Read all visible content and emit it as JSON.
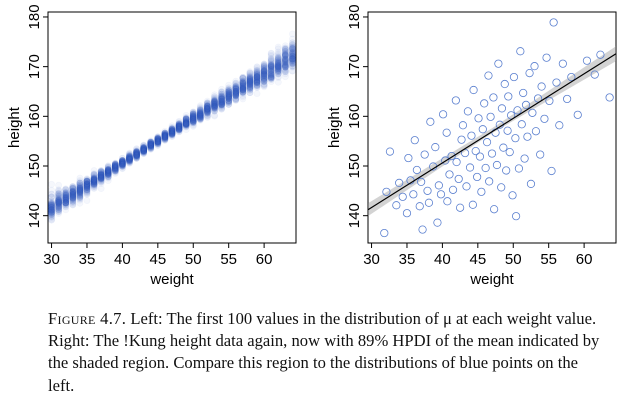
{
  "chart_data": [
    {
      "type": "scatter",
      "panel": "left",
      "xlabel": "weight",
      "ylabel": "height",
      "xlim": [
        29.5,
        64.5
      ],
      "ylim": [
        134.5,
        181
      ],
      "x_ticks": [
        30,
        35,
        40,
        45,
        50,
        55,
        60
      ],
      "y_ticks": [
        140,
        150,
        160,
        170,
        180
      ],
      "grid": false,
      "legend": "none",
      "series": [
        {
          "description": "Distribution of mu at each weight, first 100 posterior samples",
          "weights": [
            30,
            31,
            32,
            33,
            34,
            35,
            36,
            37,
            38,
            39,
            40,
            41,
            42,
            43,
            44,
            45,
            46,
            47,
            48,
            49,
            50,
            51,
            52,
            53,
            54,
            55,
            56,
            57,
            58,
            59,
            60,
            61,
            62,
            63,
            64
          ],
          "mu_mean": [
            141.6,
            142.5,
            143.4,
            144.3,
            145.2,
            146.1,
            147.0,
            147.9,
            148.8,
            149.7,
            150.6,
            151.5,
            152.4,
            153.3,
            154.2,
            155.1,
            156.0,
            156.9,
            157.8,
            158.7,
            159.6,
            160.5,
            161.4,
            162.3,
            163.2,
            164.1,
            165.0,
            165.9,
            166.8,
            167.7,
            168.6,
            169.5,
            170.4,
            171.3,
            172.2
          ],
          "mu_spread": [
            2.2,
            2.0,
            1.8,
            1.6,
            1.4,
            1.3,
            1.2,
            1.1,
            1.0,
            0.9,
            0.8,
            0.75,
            0.7,
            0.65,
            0.65,
            0.65,
            0.7,
            0.75,
            0.8,
            0.9,
            1.0,
            1.1,
            1.2,
            1.3,
            1.4,
            1.5,
            1.6,
            1.7,
            1.8,
            1.9,
            2.0,
            2.1,
            2.2,
            2.3,
            2.4
          ],
          "samples_per_weight": 100
        }
      ]
    },
    {
      "type": "scatter",
      "panel": "right",
      "xlabel": "weight",
      "ylabel": "height",
      "xlim": [
        29.5,
        64.5
      ],
      "ylim": [
        134.5,
        181
      ],
      "x_ticks": [
        30,
        35,
        40,
        45,
        50,
        55,
        60
      ],
      "y_ticks": [
        140,
        150,
        160,
        170,
        180
      ],
      "grid": false,
      "legend": "none",
      "mean_line": {
        "x": [
          29.5,
          64.5
        ],
        "y": [
          141.2,
          172.6
        ]
      },
      "hpdi_band": {
        "prob": 0.89,
        "x": [
          29.5,
          47,
          64.5
        ],
        "lower": [
          139.9,
          156.6,
          171.1
        ],
        "upper": [
          142.5,
          157.6,
          174.1
        ]
      },
      "points": [
        [
          31.8,
          136.5
        ],
        [
          32.1,
          144.8
        ],
        [
          32.6,
          152.9
        ],
        [
          33.5,
          142.1
        ],
        [
          33.9,
          146.6
        ],
        [
          34.4,
          143.8
        ],
        [
          35.0,
          140.5
        ],
        [
          35.2,
          151.6
        ],
        [
          35.5,
          147.1
        ],
        [
          35.9,
          144.3
        ],
        [
          36.1,
          155.2
        ],
        [
          36.4,
          149.2
        ],
        [
          36.8,
          141.9
        ],
        [
          37.2,
          137.2
        ],
        [
          37.0,
          146.8
        ],
        [
          37.5,
          152.3
        ],
        [
          37.9,
          145.0
        ],
        [
          38.3,
          158.9
        ],
        [
          38.1,
          142.6
        ],
        [
          38.7,
          149.9
        ],
        [
          39.0,
          153.8
        ],
        [
          39.3,
          138.6
        ],
        [
          39.5,
          146.1
        ],
        [
          39.8,
          144.3
        ],
        [
          40.1,
          160.4
        ],
        [
          40.4,
          151.1
        ],
        [
          40.7,
          142.9
        ],
        [
          40.6,
          156.7
        ],
        [
          41.0,
          148.3
        ],
        [
          41.3,
          152.0
        ],
        [
          41.5,
          145.2
        ],
        [
          41.9,
          163.2
        ],
        [
          42.0,
          150.8
        ],
        [
          42.3,
          147.4
        ],
        [
          42.5,
          141.6
        ],
        [
          42.7,
          155.3
        ],
        [
          42.9,
          158.2
        ],
        [
          43.2,
          152.6
        ],
        [
          43.4,
          145.9
        ],
        [
          43.6,
          161.0
        ],
        [
          43.9,
          149.7
        ],
        [
          44.1,
          156.1
        ],
        [
          44.3,
          142.2
        ],
        [
          44.4,
          165.3
        ],
        [
          44.7,
          153.0
        ],
        [
          44.9,
          147.8
        ],
        [
          45.1,
          159.6
        ],
        [
          45.3,
          151.9
        ],
        [
          45.5,
          144.8
        ],
        [
          45.7,
          157.4
        ],
        [
          45.9,
          162.6
        ],
        [
          46.1,
          149.6
        ],
        [
          46.3,
          154.8
        ],
        [
          46.5,
          168.2
        ],
        [
          46.6,
          146.9
        ],
        [
          46.8,
          159.9
        ],
        [
          47.0,
          152.5
        ],
        [
          47.2,
          163.8
        ],
        [
          47.3,
          141.3
        ],
        [
          47.5,
          156.7
        ],
        [
          47.7,
          150.2
        ],
        [
          47.9,
          170.6
        ],
        [
          48.1,
          158.3
        ],
        [
          48.3,
          145.7
        ],
        [
          48.4,
          161.6
        ],
        [
          48.6,
          153.7
        ],
        [
          48.8,
          166.5
        ],
        [
          49.0,
          149.1
        ],
        [
          49.2,
          157.1
        ],
        [
          49.3,
          164.0
        ],
        [
          49.5,
          152.8
        ],
        [
          49.7,
          160.2
        ],
        [
          49.9,
          144.1
        ],
        [
          50.1,
          167.9
        ],
        [
          50.3,
          155.6
        ],
        [
          50.4,
          139.9
        ],
        [
          50.6,
          161.2
        ],
        [
          50.8,
          149.5
        ],
        [
          51.0,
          173.1
        ],
        [
          51.2,
          158.4
        ],
        [
          51.4,
          164.7
        ],
        [
          51.6,
          151.5
        ],
        [
          51.8,
          162.3
        ],
        [
          52.0,
          155.9
        ],
        [
          52.3,
          168.7
        ],
        [
          52.5,
          146.4
        ],
        [
          52.7,
          160.7
        ],
        [
          53.0,
          170.1
        ],
        [
          53.2,
          157.0
        ],
        [
          53.5,
          163.6
        ],
        [
          53.8,
          152.3
        ],
        [
          54.0,
          166.0
        ],
        [
          54.4,
          159.5
        ],
        [
          54.7,
          171.8
        ],
        [
          55.1,
          163.1
        ],
        [
          55.4,
          149.0
        ],
        [
          55.7,
          178.9
        ],
        [
          56.1,
          166.8
        ],
        [
          56.5,
          158.2
        ],
        [
          57.0,
          170.6
        ],
        [
          57.6,
          163.5
        ],
        [
          58.2,
          167.9
        ],
        [
          59.1,
          160.3
        ],
        [
          60.4,
          171.2
        ],
        [
          61.5,
          168.4
        ],
        [
          62.3,
          172.4
        ],
        [
          63.6,
          163.8
        ]
      ]
    }
  ],
  "caption": {
    "figure_label": "Figure 4.7.",
    "text": " Left: The first 100 values in the distribution of μ at each weight value. Right: The !Kung height data again, now with 89% HPDI of the mean indicated by the shaded region. Compare this region to the distributions of blue points on the left."
  }
}
